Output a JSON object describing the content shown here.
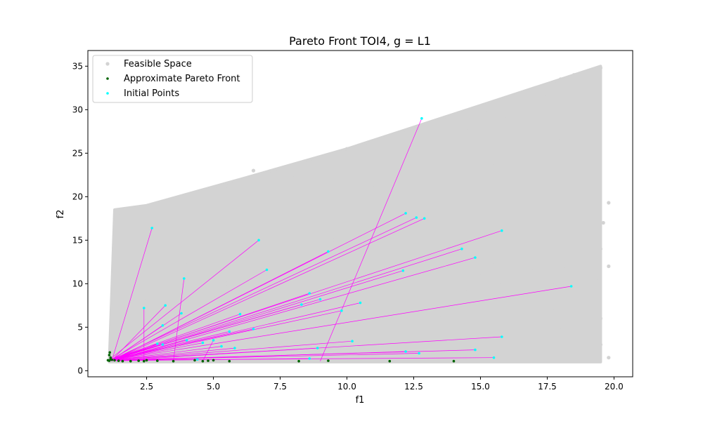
{
  "chart_data": {
    "type": "scatter",
    "title": "Pareto Front TOI4, g = L1",
    "xlabel": "f1",
    "ylabel": "f2",
    "xlim": [
      0.3,
      20.7
    ],
    "ylim": [
      -0.7,
      36.8
    ],
    "xticks": [
      "2.5",
      "5.0",
      "7.5",
      "10.0",
      "12.5",
      "15.0",
      "17.5",
      "20.0"
    ],
    "xtick_values": [
      2.5,
      5.0,
      7.5,
      10.0,
      12.5,
      15.0,
      17.5,
      20.0
    ],
    "yticks": [
      "0",
      "5",
      "10",
      "15",
      "20",
      "25",
      "30",
      "35"
    ],
    "ytick_values": [
      0,
      5,
      10,
      15,
      20,
      25,
      30,
      35
    ],
    "grid": false,
    "legend_position": "top-left",
    "colors": {
      "feasible": "#d3d3d3",
      "pareto": "#006400",
      "initial": "#00ffff",
      "paths": "#ff00ff"
    },
    "series": [
      {
        "name": "Feasible Space",
        "kind": "region",
        "outline": [
          [
            1.1,
            1.0
          ],
          [
            1.3,
            18.5
          ],
          [
            2.5,
            19.0
          ],
          [
            6.0,
            22.0
          ],
          [
            10.0,
            25.5
          ],
          [
            12.5,
            28.0
          ],
          [
            15.0,
            30.5
          ],
          [
            17.5,
            33.0
          ],
          [
            19.5,
            35.0
          ],
          [
            19.5,
            1.0
          ]
        ],
        "samples": [
          [
            1.5,
            17.8
          ],
          [
            2.0,
            18.3
          ],
          [
            2.5,
            17.5
          ],
          [
            3.0,
            17.0
          ],
          [
            3.6,
            19.5
          ],
          [
            4.5,
            19.0
          ],
          [
            5.5,
            20.8
          ],
          [
            6.5,
            23.0
          ],
          [
            7.0,
            21.5
          ],
          [
            8.0,
            22.5
          ],
          [
            9.0,
            23.0
          ],
          [
            10.0,
            25.5
          ],
          [
            10.8,
            24.5
          ],
          [
            11.5,
            26.0
          ],
          [
            12.3,
            27.0
          ],
          [
            13.0,
            25.5
          ],
          [
            13.5,
            28.0
          ],
          [
            14.5,
            27.5
          ],
          [
            15.2,
            30.0
          ],
          [
            16.0,
            29.0
          ],
          [
            16.5,
            30.5
          ],
          [
            17.0,
            31.0
          ],
          [
            17.5,
            31.5
          ],
          [
            18.0,
            33.5
          ],
          [
            18.5,
            34.0
          ],
          [
            19.0,
            32.0
          ],
          [
            19.5,
            34.8
          ],
          [
            17.0,
            28.0
          ],
          [
            18.0,
            26.5
          ],
          [
            19.2,
            26.0
          ],
          [
            19.8,
            19.3
          ],
          [
            19.6,
            17.0
          ],
          [
            19.5,
            14.0
          ],
          [
            19.8,
            12.0
          ],
          [
            19.3,
            10.5
          ],
          [
            18.2,
            12.0
          ],
          [
            17.8,
            10.0
          ],
          [
            19.5,
            6.0
          ],
          [
            19.5,
            3.0
          ],
          [
            19.8,
            1.5
          ],
          [
            2.0,
            14.0
          ],
          [
            3.5,
            15.5
          ],
          [
            5.0,
            16.5
          ],
          [
            7.0,
            18.0
          ],
          [
            9.0,
            19.5
          ],
          [
            11.0,
            21.0
          ],
          [
            13.5,
            22.0
          ],
          [
            15.5,
            23.5
          ],
          [
            17.0,
            22.5
          ],
          [
            18.5,
            23.0
          ],
          [
            4.0,
            12.5
          ],
          [
            6.5,
            13.5
          ],
          [
            9.5,
            15.0
          ],
          [
            12.0,
            16.5
          ],
          [
            14.5,
            17.0
          ],
          [
            16.5,
            17.5
          ],
          [
            18.5,
            19.5
          ],
          [
            1.8,
            10.0
          ],
          [
            3.0,
            11.5
          ],
          [
            5.5,
            10.0
          ],
          [
            8.0,
            11.5
          ],
          [
            10.5,
            12.5
          ],
          [
            13.0,
            12.0
          ],
          [
            15.5,
            12.5
          ],
          [
            17.0,
            11.5
          ],
          [
            2.5,
            8.0
          ],
          [
            4.5,
            7.5
          ],
          [
            7.0,
            8.5
          ],
          [
            9.5,
            9.0
          ],
          [
            12.0,
            9.5
          ],
          [
            14.5,
            9.0
          ],
          [
            16.5,
            8.0
          ],
          [
            1.6,
            5.0
          ],
          [
            3.5,
            5.5
          ],
          [
            6.0,
            6.0
          ],
          [
            8.5,
            5.0
          ],
          [
            11.0,
            6.5
          ],
          [
            13.5,
            6.0
          ],
          [
            16.0,
            5.5
          ],
          [
            18.0,
            5.0
          ],
          [
            2.5,
            3.0
          ],
          [
            5.0,
            2.5
          ],
          [
            7.5,
            3.0
          ],
          [
            10.0,
            2.5
          ],
          [
            12.5,
            3.0
          ],
          [
            15.0,
            2.5
          ],
          [
            17.5,
            2.0
          ],
          [
            1.4,
            1.5
          ],
          [
            3.0,
            1.3
          ],
          [
            6.0,
            1.4
          ],
          [
            9.0,
            1.3
          ],
          [
            12.0,
            1.5
          ],
          [
            15.0,
            1.4
          ],
          [
            18.0,
            1.3
          ],
          [
            19.0,
            2.0
          ],
          [
            11.0,
            4.0
          ],
          [
            14.0,
            4.2
          ],
          [
            16.8,
            4.5
          ],
          [
            17.8,
            7.0
          ],
          [
            18.6,
            8.5
          ],
          [
            16.0,
            7.0
          ],
          [
            15.0,
            10.8
          ],
          [
            15.8,
            10.0
          ]
        ]
      },
      {
        "name": "Approximate Pareto Front",
        "kind": "points",
        "x": [
          1.05,
          1.1,
          1.15,
          1.2,
          1.3,
          1.45,
          1.6,
          1.9,
          2.2,
          2.4,
          2.5,
          2.9,
          3.5,
          4.3,
          4.6,
          4.8,
          5.0,
          5.6,
          8.2,
          9.3,
          11.6,
          14.0,
          1.1,
          1.12,
          1.15
        ],
        "y": [
          1.2,
          1.15,
          1.3,
          1.25,
          1.2,
          1.15,
          1.1,
          1.1,
          1.15,
          1.1,
          1.2,
          1.15,
          1.1,
          1.2,
          1.1,
          1.15,
          1.2,
          1.1,
          1.1,
          1.15,
          1.1,
          1.1,
          1.8,
          2.1,
          1.5
        ]
      },
      {
        "name": "Initial Points",
        "kind": "points",
        "x": [
          12.8,
          2.7,
          6.7,
          12.2,
          12.6,
          12.9,
          15.8,
          9.3,
          14.3,
          14.8,
          12.1,
          7.0,
          3.9,
          18.4,
          8.6,
          10.5,
          8.3,
          2.4,
          3.2,
          3.8,
          6.0,
          4.0,
          2.9,
          5.6,
          6.5,
          5.0,
          4.6,
          5.3,
          5.8,
          10.2,
          9.0,
          12.2,
          14.8,
          15.8,
          15.5,
          12.7,
          8.6,
          4.4,
          8.9,
          9.8,
          3.1,
          3.1
        ],
        "y": [
          29.0,
          16.4,
          15.0,
          18.1,
          17.6,
          17.5,
          16.1,
          13.7,
          14.0,
          13.0,
          11.5,
          11.6,
          10.6,
          9.7,
          8.9,
          7.8,
          7.6,
          7.2,
          7.5,
          6.6,
          6.5,
          3.5,
          3.1,
          4.5,
          4.8,
          3.5,
          3.2,
          2.8,
          2.6,
          3.4,
          8.2,
          2.2,
          2.4,
          3.9,
          1.5,
          2.0,
          1.4,
          1.3,
          2.6,
          6.9,
          3.0,
          5.2
        ]
      }
    ],
    "paths": {
      "name": "paths",
      "from": "Initial Points",
      "to_x": [
        9.0,
        1.2,
        1.1,
        1.2,
        1.15,
        1.3,
        1.1,
        1.2,
        1.15,
        1.3,
        1.2,
        1.1,
        3.5,
        1.2,
        1.1,
        1.2,
        1.1,
        2.4,
        1.2,
        1.15,
        1.1,
        1.2,
        1.3,
        1.15,
        1.1,
        4.6,
        1.2,
        1.1,
        1.15,
        1.2,
        1.1,
        1.2,
        1.1,
        1.15,
        1.2,
        1.1,
        1.2,
        1.1,
        1.15,
        1.2,
        1.1,
        1.2
      ],
      "to_y": [
        1.1,
        1.2,
        1.25,
        1.15,
        1.2,
        1.3,
        1.2,
        1.15,
        1.2,
        1.25,
        1.2,
        1.15,
        1.1,
        1.2,
        1.15,
        1.2,
        1.25,
        1.15,
        1.2,
        1.15,
        1.2,
        1.2,
        1.15,
        1.2,
        1.25,
        1.1,
        1.2,
        1.15,
        1.2,
        1.2,
        1.25,
        1.15,
        1.2,
        1.15,
        1.2,
        1.2,
        1.15,
        1.2,
        1.25,
        1.2,
        1.15,
        1.2
      ]
    }
  }
}
